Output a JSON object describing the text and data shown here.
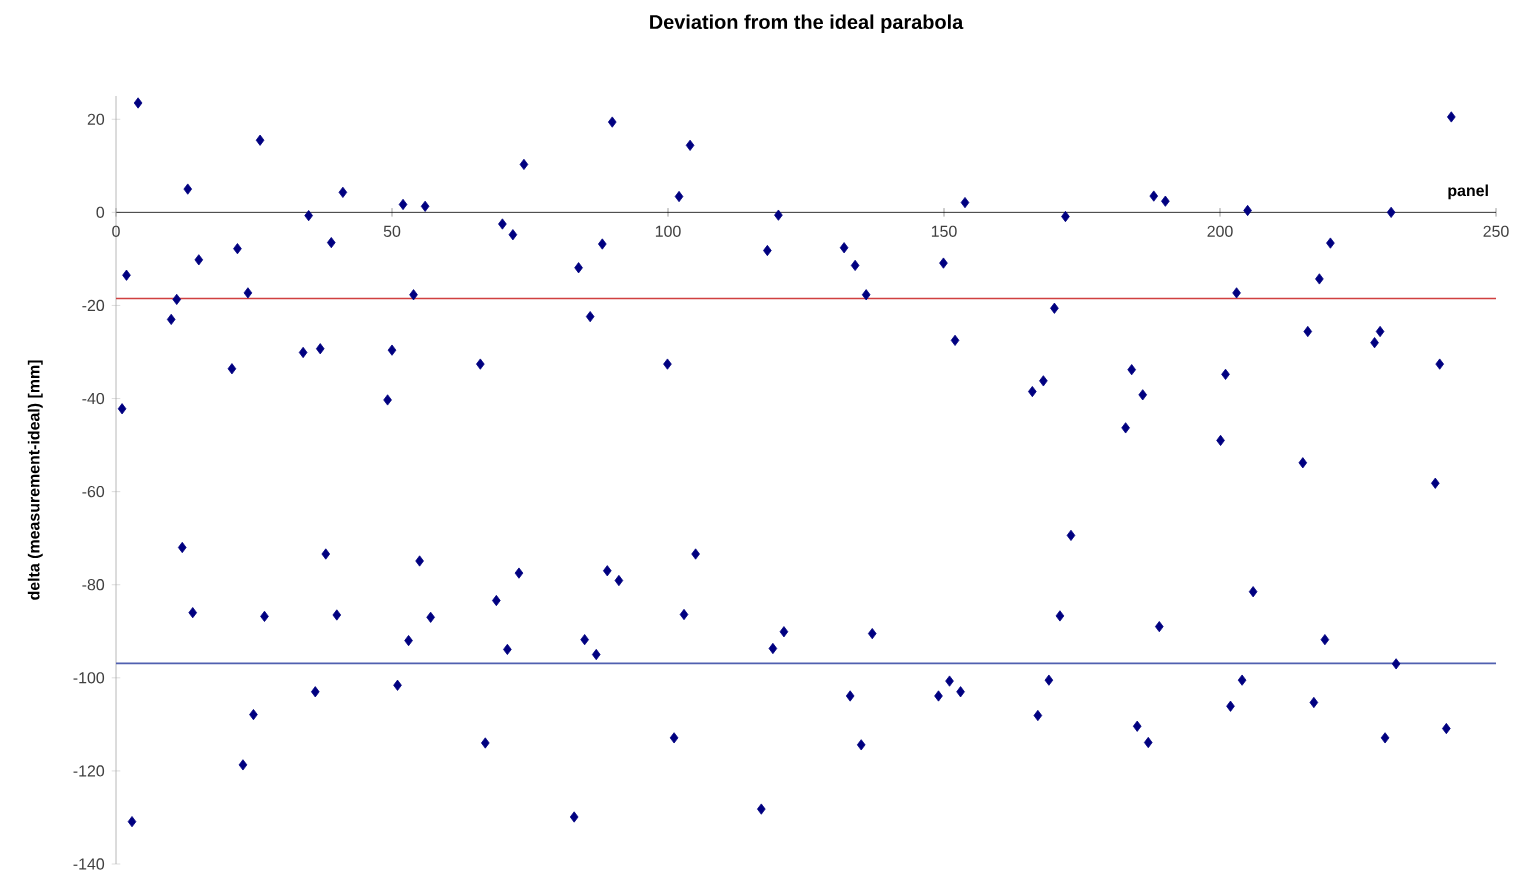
{
  "chart_data": {
    "type": "scatter",
    "title": "Deviation from the ideal parabola",
    "xlabel": "panel",
    "ylabel": "delta (measurement-ideal) [mm]",
    "xlim": [
      0,
      250
    ],
    "xticks": [
      0,
      50,
      100,
      150,
      200,
      250
    ],
    "ylim": [
      -140,
      25
    ],
    "yticks": [
      -140,
      -120,
      -100,
      -80,
      -60,
      -40,
      -20,
      0,
      20
    ],
    "grid": false,
    "marker": "diamond",
    "ref_lines": [
      {
        "axis": "y",
        "value": -18.5,
        "color": "#d04040"
      },
      {
        "axis": "y",
        "value": -96.9,
        "color": "#5060b0"
      }
    ],
    "series": [
      {
        "color": "#000080",
        "x": [
          4,
          1.9,
          1.1,
          2.9,
          10,
          11,
          13,
          12,
          13.9,
          15,
          21,
          22,
          23.9,
          23,
          24.9,
          26.1,
          26.9,
          33.9,
          34.9,
          37,
          38,
          39,
          40,
          36.1,
          41.1,
          49.2,
          50,
          51,
          52,
          53,
          53.9,
          55,
          56,
          57,
          66,
          66.9,
          68.9,
          70,
          70.9,
          71.9,
          73.9,
          73,
          83.8,
          85.9,
          88.1,
          89.9,
          83,
          84.9,
          87,
          89,
          91.1,
          99.9,
          101.1,
          102,
          102.9,
          104,
          105,
          118,
          116.9,
          119,
          120,
          121,
          131.9,
          133,
          133.9,
          135,
          135.9,
          137,
          149.9,
          149,
          151,
          152,
          153,
          153.8,
          172,
          170,
          166,
          168,
          173,
          171,
          169,
          167,
          188,
          190.1,
          184,
          186,
          182.9,
          189,
          185,
          187,
          205,
          203,
          201,
          200.1,
          206,
          204,
          201.9,
          220,
          218,
          215.9,
          215,
          219,
          217,
          231,
          229,
          228,
          231.9,
          229.9,
          241.9,
          239.8,
          239,
          241
        ],
        "values": [
          23.5,
          -13.5,
          -42.2,
          -130.9,
          -23,
          -18.7,
          5,
          -72,
          -86,
          -10.2,
          -33.6,
          -7.8,
          -17.3,
          -118.7,
          -107.9,
          15.5,
          -86.8,
          -30.1,
          -0.7,
          -29.3,
          -73.4,
          -6.5,
          -86.5,
          -103,
          4.3,
          -40.3,
          -29.6,
          -101.6,
          1.7,
          -92,
          -17.7,
          -74.9,
          1.3,
          -87,
          -32.6,
          -114,
          -83.4,
          -2.5,
          -93.9,
          -4.8,
          10.3,
          -77.5,
          -11.9,
          -22.4,
          -6.8,
          19.4,
          -129.9,
          -91.8,
          -95,
          -77,
          -79.1,
          -32.6,
          -112.9,
          3.4,
          -86.4,
          14.4,
          -73.4,
          -8.2,
          -128.2,
          -93.7,
          -0.6,
          -90.1,
          -7.6,
          -103.9,
          -11.4,
          -114.4,
          -17.7,
          -90.5,
          -10.9,
          -103.9,
          -100.7,
          -27.5,
          -103,
          2.1,
          -0.9,
          -20.6,
          -38.5,
          -36.2,
          -69.4,
          -86.7,
          -100.5,
          -108.1,
          3.5,
          2.4,
          -33.8,
          -39.2,
          -46.3,
          -89,
          -110.4,
          -113.9,
          0.4,
          -17.3,
          -34.8,
          -49,
          -81.5,
          -100.5,
          -106.1,
          -6.6,
          -14.3,
          -25.6,
          -53.8,
          -91.8,
          -105.3,
          0,
          -25.6,
          -28,
          -97,
          -112.9,
          20.5,
          -32.6,
          -58.2,
          -110.9
        ]
      }
    ]
  }
}
